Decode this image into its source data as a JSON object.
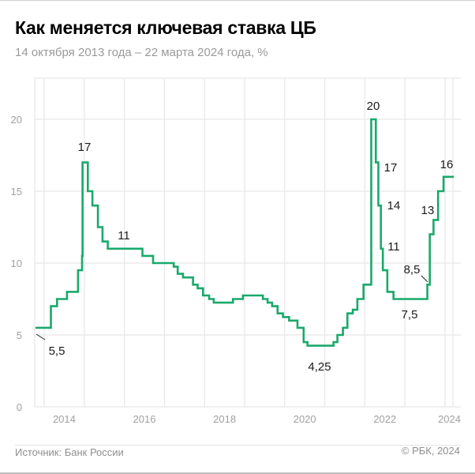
{
  "header": {
    "title": "Как меняется ключевая ставка ЦБ",
    "subtitle": "14 октября 2013 года – 22 марта 2024 года, %"
  },
  "footer": {
    "source": "Источник: Банк России",
    "copyright": "© РБК, 2024"
  },
  "chart_data": {
    "type": "line",
    "step": true,
    "title": "Как меняется ключевая ставка ЦБ",
    "subtitle": "14 октября 2013 года – 22 марта 2024 года, %",
    "xlabel": "",
    "ylabel": "",
    "xlim": [
      "2013-10-14",
      "2024-03-22"
    ],
    "ylim": [
      0,
      23
    ],
    "grid": true,
    "line_color": "#1aa96b",
    "x_ticks": [
      "2014",
      "2016",
      "2018",
      "2020",
      "2022",
      "2024"
    ],
    "y_ticks": [
      "0",
      "5",
      "10",
      "15",
      "20"
    ],
    "series": [
      {
        "points": [
          [
            "2013-10-14",
            5.5
          ],
          [
            "2014-03-03",
            7.0
          ],
          [
            "2014-04-28",
            7.5
          ],
          [
            "2014-07-28",
            8.0
          ],
          [
            "2014-11-05",
            9.5
          ],
          [
            "2014-12-12",
            10.5
          ],
          [
            "2014-12-16",
            17.0
          ],
          [
            "2015-02-02",
            15.0
          ],
          [
            "2015-03-16",
            14.0
          ],
          [
            "2015-05-05",
            12.5
          ],
          [
            "2015-06-16",
            11.5
          ],
          [
            "2015-08-03",
            11.0
          ],
          [
            "2016-06-14",
            10.5
          ],
          [
            "2016-09-19",
            10.0
          ],
          [
            "2017-03-27",
            9.75
          ],
          [
            "2017-05-02",
            9.25
          ],
          [
            "2017-06-19",
            9.0
          ],
          [
            "2017-09-18",
            8.5
          ],
          [
            "2017-10-30",
            8.25
          ],
          [
            "2017-12-18",
            7.75
          ],
          [
            "2018-02-12",
            7.5
          ],
          [
            "2018-03-26",
            7.25
          ],
          [
            "2018-09-17",
            7.5
          ],
          [
            "2018-12-17",
            7.75
          ],
          [
            "2019-06-17",
            7.5
          ],
          [
            "2019-07-29",
            7.25
          ],
          [
            "2019-09-09",
            7.0
          ],
          [
            "2019-10-28",
            6.5
          ],
          [
            "2019-12-16",
            6.25
          ],
          [
            "2020-02-10",
            6.0
          ],
          [
            "2020-04-27",
            5.5
          ],
          [
            "2020-06-22",
            4.5
          ],
          [
            "2020-07-27",
            4.25
          ],
          [
            "2021-03-22",
            4.5
          ],
          [
            "2021-04-26",
            5.0
          ],
          [
            "2021-06-15",
            5.5
          ],
          [
            "2021-07-26",
            6.5
          ],
          [
            "2021-09-13",
            6.75
          ],
          [
            "2021-10-25",
            7.5
          ],
          [
            "2021-12-20",
            8.5
          ],
          [
            "2022-02-28",
            20.0
          ],
          [
            "2022-04-11",
            17.0
          ],
          [
            "2022-05-04",
            14.0
          ],
          [
            "2022-05-27",
            11.0
          ],
          [
            "2022-06-14",
            9.5
          ],
          [
            "2022-07-25",
            8.0
          ],
          [
            "2022-09-19",
            7.5
          ],
          [
            "2023-07-24",
            8.5
          ],
          [
            "2023-08-15",
            12.0
          ],
          [
            "2023-09-18",
            13.0
          ],
          [
            "2023-10-30",
            15.0
          ],
          [
            "2023-12-18",
            16.0
          ],
          [
            "2024-03-22",
            16.0
          ]
        ]
      }
    ],
    "annotations": [
      "5,5",
      "17",
      "11",
      "4,25",
      "20",
      "17",
      "14",
      "11",
      "8,5",
      "7,5",
      "13",
      "16"
    ]
  }
}
